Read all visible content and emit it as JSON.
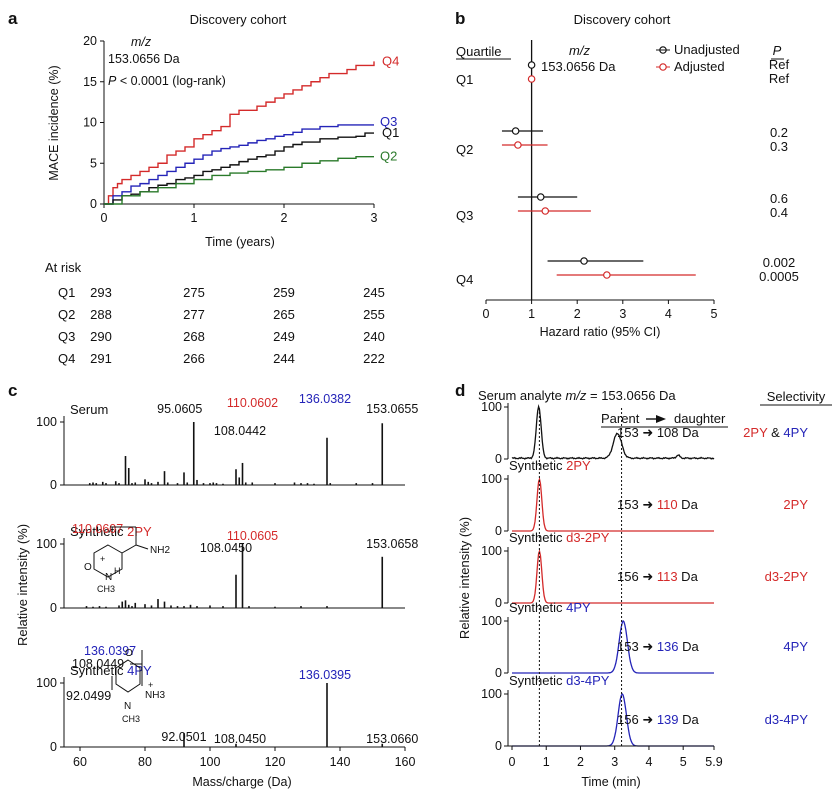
{
  "colors": {
    "black": "#111111",
    "red": "#d42a2a",
    "blue": "#2424b8",
    "green": "#2a7a2a",
    "grey": "#777777"
  },
  "panel_a": {
    "label": "a",
    "title": "Discovery cohort",
    "mz_label": "m/z",
    "mz_value": "153.0656 Da",
    "p_text": "P < 0.0001 (log-rank)",
    "at_risk_label": "At risk",
    "chart_data": {
      "type": "line",
      "title": "Discovery cohort",
      "xlabel": "Time (years)",
      "ylabel": "MACE incidence (%)",
      "xlim": [
        0,
        3
      ],
      "ylim": [
        0,
        20
      ],
      "xticks": [
        "0",
        "1",
        "2",
        "3"
      ],
      "yticks": [
        "0",
        "5",
        "10",
        "15",
        "20"
      ],
      "series": [
        {
          "name": "Q4",
          "color": "#d42a2a",
          "x": [
            0,
            0.05,
            0.1,
            0.15,
            0.2,
            0.3,
            0.4,
            0.5,
            0.6,
            0.7,
            0.8,
            0.9,
            1.0,
            1.1,
            1.2,
            1.3,
            1.4,
            1.5,
            1.6,
            1.7,
            1.8,
            1.9,
            2.0,
            2.1,
            2.2,
            2.3,
            2.4,
            2.5,
            2.6,
            2.7,
            2.8,
            2.9,
            3.0
          ],
          "y": [
            0,
            1,
            2,
            2.5,
            3,
            3.5,
            4,
            4.5,
            5,
            6,
            6.5,
            7,
            8,
            8.5,
            9,
            9.5,
            11,
            11.5,
            11.5,
            12,
            12.5,
            13,
            13.5,
            14,
            14.5,
            15,
            15.5,
            16,
            16,
            16.5,
            17,
            17,
            17.5
          ]
        },
        {
          "name": "Q3",
          "color": "#2424b8",
          "x": [
            0,
            0.1,
            0.2,
            0.3,
            0.4,
            0.5,
            0.6,
            0.7,
            0.8,
            0.9,
            1.0,
            1.1,
            1.2,
            1.3,
            1.4,
            1.5,
            1.6,
            1.7,
            1.8,
            1.9,
            2.0,
            2.1,
            2.2,
            2.4,
            2.6,
            2.8,
            3.0
          ],
          "y": [
            0,
            1,
            1.5,
            2.2,
            2.5,
            3,
            3.5,
            4,
            4.5,
            5,
            5.5,
            6,
            6.5,
            6.8,
            7,
            7.2,
            7.5,
            7.8,
            8,
            8.3,
            8.5,
            8.8,
            9.2,
            9.5,
            9.7,
            9.7,
            9.7
          ]
        },
        {
          "name": "Q1",
          "color": "#111111",
          "x": [
            0,
            0.1,
            0.2,
            0.3,
            0.4,
            0.5,
            0.6,
            0.7,
            0.8,
            0.9,
            1.0,
            1.1,
            1.2,
            1.3,
            1.4,
            1.5,
            1.6,
            1.7,
            1.8,
            1.9,
            2.0,
            2.1,
            2.2,
            2.4,
            2.6,
            2.8,
            2.9,
            3.0
          ],
          "y": [
            0,
            0.5,
            1,
            1.2,
            1.5,
            2,
            2.3,
            2.5,
            3,
            3.2,
            3.5,
            4,
            4.2,
            4.5,
            4.8,
            5.2,
            5.5,
            5.8,
            6,
            6.5,
            7,
            7.3,
            7.6,
            8,
            8.2,
            8.3,
            8.7,
            8.7
          ]
        },
        {
          "name": "Q2",
          "color": "#2a7a2a",
          "x": [
            0,
            0.2,
            0.4,
            0.6,
            0.8,
            1.0,
            1.2,
            1.4,
            1.6,
            1.8,
            2.0,
            2.2,
            2.4,
            2.6,
            2.8,
            3.0
          ],
          "y": [
            0,
            1,
            1.5,
            2,
            2.5,
            3,
            3.5,
            3.8,
            4,
            4.2,
            4.5,
            5,
            5.3,
            5.6,
            5.8,
            5.8
          ]
        }
      ]
    },
    "risk_table": {
      "rows": [
        {
          "label": "Q1",
          "values": [
            "293",
            "275",
            "259",
            "245"
          ]
        },
        {
          "label": "Q2",
          "values": [
            "288",
            "277",
            "265",
            "255"
          ]
        },
        {
          "label": "Q3",
          "values": [
            "290",
            "268",
            "249",
            "240"
          ]
        },
        {
          "label": "Q4",
          "values": [
            "291",
            "266",
            "244",
            "222"
          ]
        }
      ]
    }
  },
  "panel_b": {
    "label": "b",
    "title": "Discovery cohort",
    "quartile_header": "Quartile",
    "mz_label": "m/z",
    "mz_value": "153.0656 Da",
    "p_header": "P",
    "legend_unadjusted": "Unadjusted",
    "legend_adjusted": "Adjusted",
    "chart_data": {
      "type": "scatter",
      "subtype": "forest",
      "xlabel": "Hazard ratio (95% CI)",
      "xlim": [
        0,
        5
      ],
      "xticks": [
        "0",
        "1",
        "2",
        "3",
        "4",
        "5"
      ],
      "reference_line": 1,
      "quartiles": [
        {
          "label": "Q1",
          "unadjusted": {
            "hr": 1.0,
            "lo": 1.0,
            "hi": 1.0,
            "p": "Ref"
          },
          "adjusted": {
            "hr": 1.0,
            "lo": 1.0,
            "hi": 1.0,
            "p": "Ref"
          }
        },
        {
          "label": "Q2",
          "unadjusted": {
            "hr": 0.65,
            "lo": 0.35,
            "hi": 1.25,
            "p": "0.2"
          },
          "adjusted": {
            "hr": 0.7,
            "lo": 0.35,
            "hi": 1.35,
            "p": "0.3"
          }
        },
        {
          "label": "Q3",
          "unadjusted": {
            "hr": 1.2,
            "lo": 0.7,
            "hi": 2.0,
            "p": "0.6"
          },
          "adjusted": {
            "hr": 1.3,
            "lo": 0.7,
            "hi": 2.3,
            "p": "0.4"
          }
        },
        {
          "label": "Q4",
          "unadjusted": {
            "hr": 2.15,
            "lo": 1.35,
            "hi": 3.45,
            "p": "0.002"
          },
          "adjusted": {
            "hr": 2.65,
            "lo": 1.55,
            "hi": 4.6,
            "p": "0.0005"
          }
        }
      ]
    }
  },
  "panel_c": {
    "label": "c",
    "ylabel": "Relative intensity (%)",
    "xlabel": "Mass/charge (Da)",
    "xticks": [
      "60",
      "80",
      "100",
      "120",
      "140",
      "160"
    ],
    "chart_data": {
      "type": "bar",
      "subtype": "mass-spectrum",
      "xlim": [
        60,
        160
      ],
      "ylim": [
        0,
        100
      ],
      "spectra": [
        {
          "name": "Serum",
          "title_prefix": "Serum",
          "title_colored": "",
          "peaks": [
            [
              63,
              3
            ],
            [
              64,
              4
            ],
            [
              65,
              3
            ],
            [
              67,
              5
            ],
            [
              68,
              3
            ],
            [
              71,
              6
            ],
            [
              72,
              3
            ],
            [
              74,
              46
            ],
            [
              75,
              27
            ],
            [
              76,
              3
            ],
            [
              77,
              4
            ],
            [
              80,
              9
            ],
            [
              81,
              5
            ],
            [
              82,
              3
            ],
            [
              84,
              5
            ],
            [
              86,
              22
            ],
            [
              87,
              4
            ],
            [
              90,
              3
            ],
            [
              92,
              20
            ],
            [
              93,
              4
            ],
            [
              95,
              100
            ],
            [
              96,
              8
            ],
            [
              98,
              3
            ],
            [
              100,
              3
            ],
            [
              101,
              4
            ],
            [
              102,
              3
            ],
            [
              104,
              2
            ],
            [
              108,
              25
            ],
            [
              109,
              12
            ],
            [
              110,
              35
            ],
            [
              111,
              4
            ],
            [
              113,
              4
            ],
            [
              120,
              3
            ],
            [
              126,
              4
            ],
            [
              128,
              3
            ],
            [
              130,
              3
            ],
            [
              132,
              2
            ],
            [
              136,
              75
            ],
            [
              137,
              3
            ],
            [
              145,
              3
            ],
            [
              150,
              3
            ],
            [
              153,
              98
            ]
          ],
          "labels": [
            {
              "mz": 95,
              "text": "95.0605",
              "color": "black"
            },
            {
              "mz": 108,
              "text": "108.0442",
              "color": "black"
            },
            {
              "mz": 110,
              "text": "110.0602",
              "color": "red"
            },
            {
              "mz": 136,
              "text": "136.0382",
              "color": "blue"
            },
            {
              "mz": 153,
              "text": "153.0655",
              "color": "black"
            }
          ]
        },
        {
          "name": "Synthetic 2PY",
          "title_prefix": "Synthetic ",
          "title_colored": "2PY",
          "peaks": [
            [
              62,
              3
            ],
            [
              64,
              2
            ],
            [
              66,
              3
            ],
            [
              68,
              2
            ],
            [
              72,
              4
            ],
            [
              73,
              10
            ],
            [
              74,
              12
            ],
            [
              75,
              5
            ],
            [
              76,
              3
            ],
            [
              77,
              8
            ],
            [
              80,
              6
            ],
            [
              82,
              4
            ],
            [
              84,
              14
            ],
            [
              86,
              10
            ],
            [
              88,
              4
            ],
            [
              90,
              3
            ],
            [
              92,
              3
            ],
            [
              94,
              5
            ],
            [
              96,
              3
            ],
            [
              100,
              4
            ],
            [
              104,
              3
            ],
            [
              108,
              52
            ],
            [
              110,
              100
            ],
            [
              112,
              3
            ],
            [
              120,
              2
            ],
            [
              128,
              3
            ],
            [
              136,
              3
            ],
            [
              153,
              80
            ]
          ],
          "labels": [
            {
              "mz": 108,
              "text": "108.0450",
              "color": "black"
            },
            {
              "mz": 110,
              "text": "110.0605",
              "color": "red"
            },
            {
              "mz": 153,
              "text": "153.0658",
              "color": "black"
            }
          ],
          "structure_labels": [
            {
              "text": "110.0607",
              "color": "red"
            },
            {
              "text": "NH2",
              "color": "black"
            },
            {
              "text": "O",
              "color": "black"
            },
            {
              "text": "N",
              "color": "black"
            },
            {
              "text": "H",
              "color": "black"
            },
            {
              "text": "CH3",
              "color": "black"
            },
            {
              "text": "+",
              "color": "black"
            }
          ]
        },
        {
          "name": "Synthetic 4PY",
          "title_prefix": "Synthetic ",
          "title_colored": "4PY",
          "peaks": [
            [
              92,
              22
            ],
            [
              108,
              5
            ],
            [
              136,
              100
            ],
            [
              153,
              5
            ]
          ],
          "labels": [
            {
              "mz": 92,
              "text": "92.0501",
              "color": "black"
            },
            {
              "mz": 108,
              "text": "108.0450",
              "color": "black"
            },
            {
              "mz": 136,
              "text": "136.0395",
              "color": "blue"
            },
            {
              "mz": 153,
              "text": "153.0660",
              "color": "black"
            }
          ],
          "structure_labels": [
            {
              "text": "136.0397",
              "color": "blue"
            },
            {
              "text": "108.0449",
              "color": "black"
            },
            {
              "text": "92.0499",
              "color": "black"
            },
            {
              "text": "O",
              "color": "black"
            },
            {
              "text": "NH3",
              "color": "black"
            },
            {
              "text": "N",
              "color": "black"
            },
            {
              "text": "CH3",
              "color": "black"
            },
            {
              "text": "+",
              "color": "black"
            }
          ]
        }
      ]
    }
  },
  "panel_d": {
    "label": "d",
    "title_prefix": "Serum analyte ",
    "title_mz": "m/z",
    "title_suffix": " = 153.0656 Da",
    "selectivity_header": "Selectivity",
    "transition_header_parent": "Parent",
    "transition_header_daughter": "daughter",
    "ylabel": "Relative intensity (%)",
    "xlabel": "Time (min)",
    "xticks": [
      "0",
      "1",
      "2",
      "3",
      "4",
      "5",
      "5.9"
    ],
    "dashed_times": [
      0.8,
      3.2
    ],
    "chart_data": {
      "type": "line",
      "subtype": "chromatogram",
      "xlim": [
        0,
        5.9
      ],
      "ylim": [
        0,
        100
      ],
      "traces": [
        {
          "name": "Serum",
          "title_prefix": "",
          "title_colored": "",
          "color": "black",
          "parent": "153",
          "daughter": "108",
          "daughter_color": "black",
          "selectivity": [
            {
              "text": "2PY",
              "color": "red"
            },
            {
              "text": " & ",
              "color": "black"
            },
            {
              "text": "4PY",
              "color": "blue"
            }
          ],
          "peaks": [
            {
              "t": 0.78,
              "h": 100,
              "w": 0.07
            },
            {
              "t": 3.08,
              "h": 48,
              "w": 0.12
            },
            {
              "t": 4.85,
              "h": 6,
              "w": 0.05
            }
          ],
          "noise": true
        },
        {
          "name": "Synthetic 2PY",
          "title_prefix": "Synthetic ",
          "title_colored": "2PY",
          "color": "red",
          "parent": "153",
          "daughter": "110",
          "daughter_color": "red",
          "selectivity": [
            {
              "text": "2PY",
              "color": "red"
            }
          ],
          "peaks": [
            {
              "t": 0.8,
              "h": 100,
              "w": 0.07
            }
          ],
          "noise": false
        },
        {
          "name": "Synthetic d3-2PY",
          "title_prefix": "Synthetic ",
          "title_colored": "d3-2PY",
          "color": "red",
          "parent": "156",
          "daughter": "113",
          "daughter_color": "red",
          "selectivity": [
            {
              "text": "d3-2PY",
              "color": "red"
            }
          ],
          "peaks": [
            {
              "t": 0.8,
              "h": 100,
              "w": 0.07
            }
          ],
          "noise": false
        },
        {
          "name": "Synthetic 4PY",
          "title_prefix": "Synthetic ",
          "title_colored": "4PY",
          "color": "blue",
          "parent": "153",
          "daughter": "136",
          "daughter_color": "blue",
          "selectivity": [
            {
              "text": "4PY",
              "color": "blue"
            }
          ],
          "peaks": [
            {
              "t": 3.25,
              "h": 100,
              "w": 0.12
            }
          ],
          "noise": false
        },
        {
          "name": "Synthetic d3-4PY",
          "title_prefix": "Synthetic ",
          "title_colored": "d3-4PY",
          "color": "blue",
          "parent": "156",
          "daughter": "139",
          "daughter_color": "blue",
          "selectivity": [
            {
              "text": "d3-4PY",
              "color": "blue"
            }
          ],
          "peaks": [
            {
              "t": 3.22,
              "h": 100,
              "w": 0.12
            }
          ],
          "noise": false
        }
      ]
    }
  }
}
